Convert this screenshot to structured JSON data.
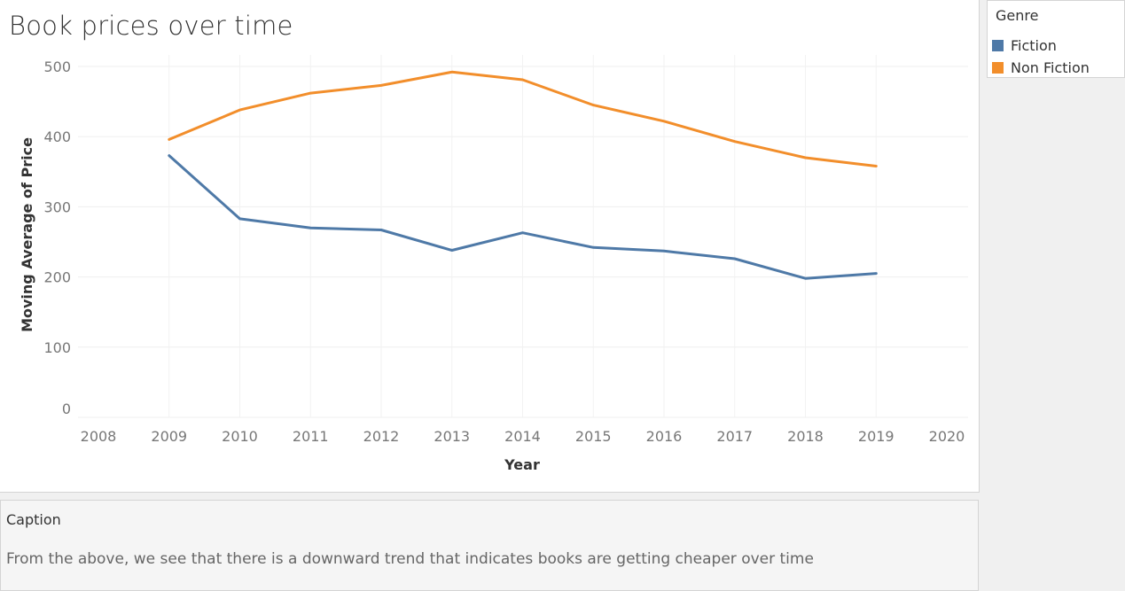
{
  "title": "Book prices over time",
  "legend": {
    "title": "Genre",
    "items": [
      {
        "label": "Fiction",
        "color": "#4e79a7"
      },
      {
        "label": "Non Fiction",
        "color": "#f28e2b"
      }
    ]
  },
  "caption": {
    "title": "Caption",
    "text": "From the above, we see that there is a downward trend that indicates books are getting cheaper over time"
  },
  "chart_data": {
    "type": "line",
    "title": "Book prices over time",
    "xlabel": "Year",
    "ylabel": "Moving Average of Price",
    "x_ticks": [
      "2008",
      "2009",
      "2010",
      "2011",
      "2012",
      "2013",
      "2014",
      "2015",
      "2016",
      "2017",
      "2018",
      "2019",
      "2020"
    ],
    "y_ticks": [
      0,
      100,
      200,
      300,
      400,
      500
    ],
    "xlim": [
      2008,
      2020
    ],
    "ylim": [
      0,
      500
    ],
    "grid": true,
    "legend_position": "right",
    "x": [
      2009,
      2010,
      2011,
      2012,
      2013,
      2014,
      2015,
      2016,
      2017,
      2018,
      2019
    ],
    "series": [
      {
        "name": "Fiction",
        "color": "#4e79a7",
        "values": [
          373,
          283,
          270,
          267,
          238,
          263,
          242,
          237,
          226,
          198,
          205
        ]
      },
      {
        "name": "Non Fiction",
        "color": "#f28e2b",
        "values": [
          396,
          438,
          462,
          473,
          492,
          481,
          445,
          422,
          393,
          370,
          358
        ]
      }
    ]
  }
}
